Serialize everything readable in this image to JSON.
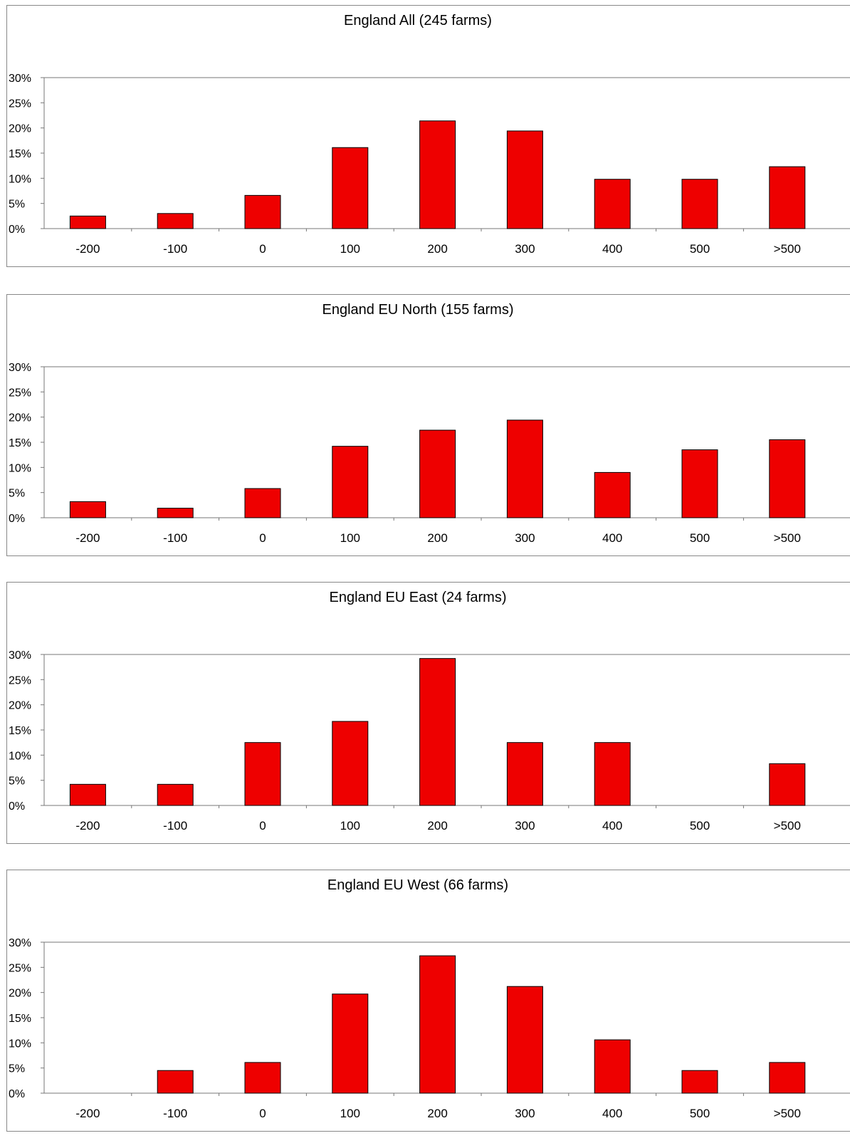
{
  "chart_data": [
    {
      "type": "bar",
      "title": "England All (245 farms)",
      "categories": [
        "-200",
        "-100",
        "0",
        "100",
        "200",
        "300",
        "400",
        "500",
        ">500"
      ],
      "values": [
        2.5,
        3.0,
        6.6,
        16.1,
        21.4,
        19.4,
        9.8,
        9.8,
        12.3
      ],
      "ylim": [
        0,
        30
      ],
      "yticks": [
        "0%",
        "5%",
        "10%",
        "15%",
        "20%",
        "25%",
        "30%"
      ],
      "bar_color": "#ee0000",
      "grid": false,
      "legend": "none"
    },
    {
      "type": "bar",
      "title": "England EU North (155 farms)",
      "categories": [
        "-200",
        "-100",
        "0",
        "100",
        "200",
        "300",
        "400",
        "500",
        ">500"
      ],
      "values": [
        3.2,
        1.9,
        5.8,
        14.2,
        17.4,
        19.4,
        9.0,
        13.5,
        15.5
      ],
      "ylim": [
        0,
        30
      ],
      "yticks": [
        "0%",
        "5%",
        "10%",
        "15%",
        "20%",
        "25%",
        "30%"
      ],
      "bar_color": "#ee0000",
      "grid": false,
      "legend": "none"
    },
    {
      "type": "bar",
      "title": "England EU East (24 farms)",
      "categories": [
        "-200",
        "-100",
        "0",
        "100",
        "200",
        "300",
        "400",
        "500",
        ">500"
      ],
      "values": [
        4.2,
        4.2,
        12.5,
        16.7,
        29.2,
        12.5,
        12.5,
        0,
        8.3
      ],
      "ylim": [
        0,
        30
      ],
      "yticks": [
        "0%",
        "5%",
        "10%",
        "15%",
        "20%",
        "25%",
        "30%"
      ],
      "bar_color": "#ee0000",
      "grid": false,
      "legend": "none"
    },
    {
      "type": "bar",
      "title": "England EU West (66 farms)",
      "categories": [
        "-200",
        "-100",
        "0",
        "100",
        "200",
        "300",
        "400",
        "500",
        ">500"
      ],
      "values": [
        0,
        4.5,
        6.1,
        19.7,
        27.3,
        21.2,
        10.6,
        4.5,
        6.1
      ],
      "ylim": [
        0,
        30
      ],
      "yticks": [
        "0%",
        "5%",
        "10%",
        "15%",
        "20%",
        "25%",
        "30%"
      ],
      "bar_color": "#ee0000",
      "grid": false,
      "legend": "none"
    }
  ]
}
